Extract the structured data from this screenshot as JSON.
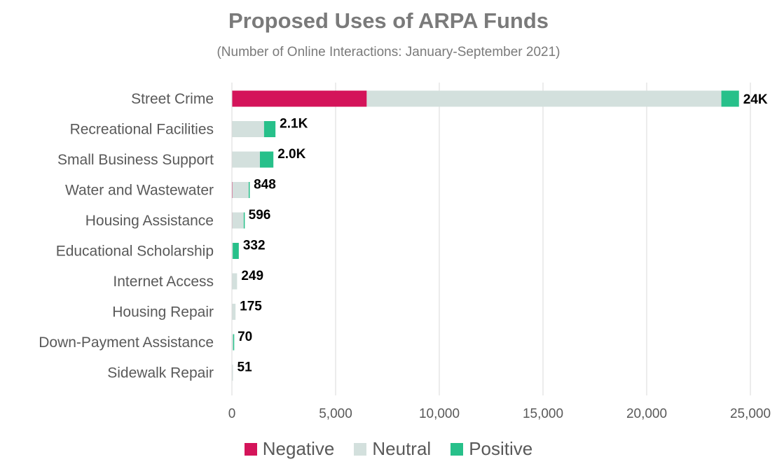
{
  "chart_data": {
    "type": "bar",
    "orientation": "horizontal",
    "stacked": true,
    "title": "Proposed Uses of ARPA Funds",
    "subtitle": "(Number of Online Interactions: January-September 2021)",
    "categories": [
      "Street Crime",
      "Recreational Facilities",
      "Small Business Support",
      "Water and Wastewater",
      "Housing Assistance",
      "Educational Scholarship",
      "Internet Access",
      "Housing Repair",
      "Down-Payment Assistance",
      "Sidewalk Repair"
    ],
    "series": [
      {
        "name": "Negative",
        "color": "#d4145a",
        "values": [
          6500,
          0,
          0,
          30,
          20,
          0,
          0,
          0,
          0,
          0
        ]
      },
      {
        "name": "Neutral",
        "color": "#d3e0dd",
        "values": [
          17100,
          1550,
          1350,
          780,
          550,
          40,
          249,
          175,
          60,
          51
        ]
      },
      {
        "name": "Positive",
        "color": "#27c08a",
        "values": [
          850,
          550,
          650,
          38,
          26,
          292,
          0,
          0,
          10,
          0
        ]
      }
    ],
    "totals": [
      24450,
      2100,
      2000,
      848,
      596,
      332,
      249,
      175,
      70,
      51
    ],
    "total_labels": [
      "24K",
      "2.1K",
      "2.0K",
      "848",
      "596",
      "332",
      "249",
      "175",
      "70",
      "51"
    ],
    "xlim": [
      0,
      25000
    ],
    "xticks": [
      0,
      5000,
      10000,
      15000,
      20000,
      25000
    ],
    "xtick_labels": [
      "0",
      "5,000",
      "10,000",
      "15,000",
      "20,000",
      "25,000"
    ],
    "grid": true,
    "legend_position": "bottom"
  }
}
